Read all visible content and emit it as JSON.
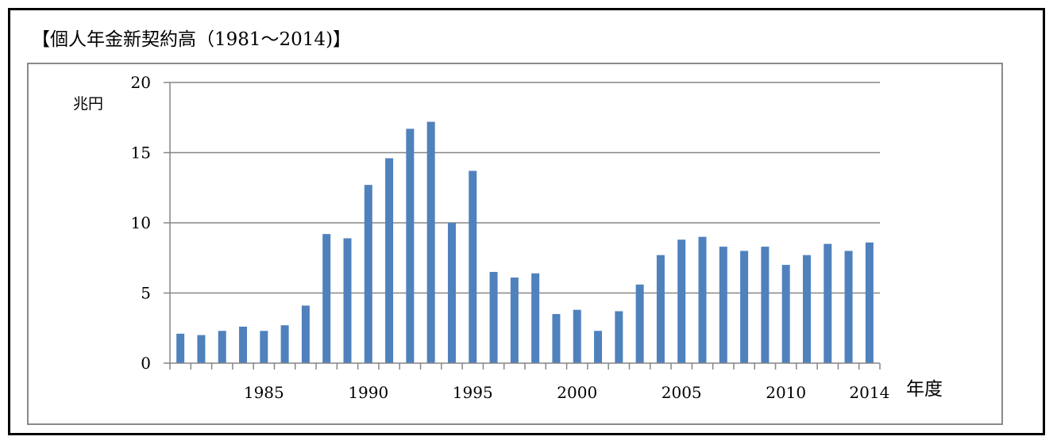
{
  "title": "【個人年金新契約高（1981～2014)】",
  "chart_data": {
    "type": "bar",
    "title": "【個人年金新契約高（1981～2014)】",
    "ylabel": "兆円",
    "xlabel": "年度",
    "ylim": [
      0,
      20
    ],
    "yticks": [
      0,
      5,
      10,
      15,
      20
    ],
    "xtick_labels": [
      "1985",
      "1990",
      "1995",
      "2000",
      "2005",
      "2010",
      "2014"
    ],
    "bar_color": "#4f81bd",
    "grid": true,
    "categories": [
      1981,
      1982,
      1983,
      1984,
      1985,
      1986,
      1987,
      1988,
      1989,
      1990,
      1991,
      1992,
      1993,
      1994,
      1995,
      1996,
      1997,
      1998,
      1999,
      2000,
      2001,
      2002,
      2003,
      2004,
      2005,
      2006,
      2007,
      2008,
      2009,
      2010,
      2011,
      2012,
      2013,
      2014
    ],
    "values": [
      2.1,
      2.0,
      2.3,
      2.6,
      2.3,
      2.7,
      4.1,
      9.2,
      8.9,
      12.7,
      14.6,
      16.7,
      17.2,
      10.0,
      13.7,
      6.5,
      6.1,
      6.4,
      3.5,
      3.8,
      2.3,
      3.7,
      5.6,
      7.7,
      8.8,
      9.0,
      8.3,
      8.0,
      8.3,
      7.0,
      7.7,
      8.5,
      8.0,
      8.6
    ]
  }
}
